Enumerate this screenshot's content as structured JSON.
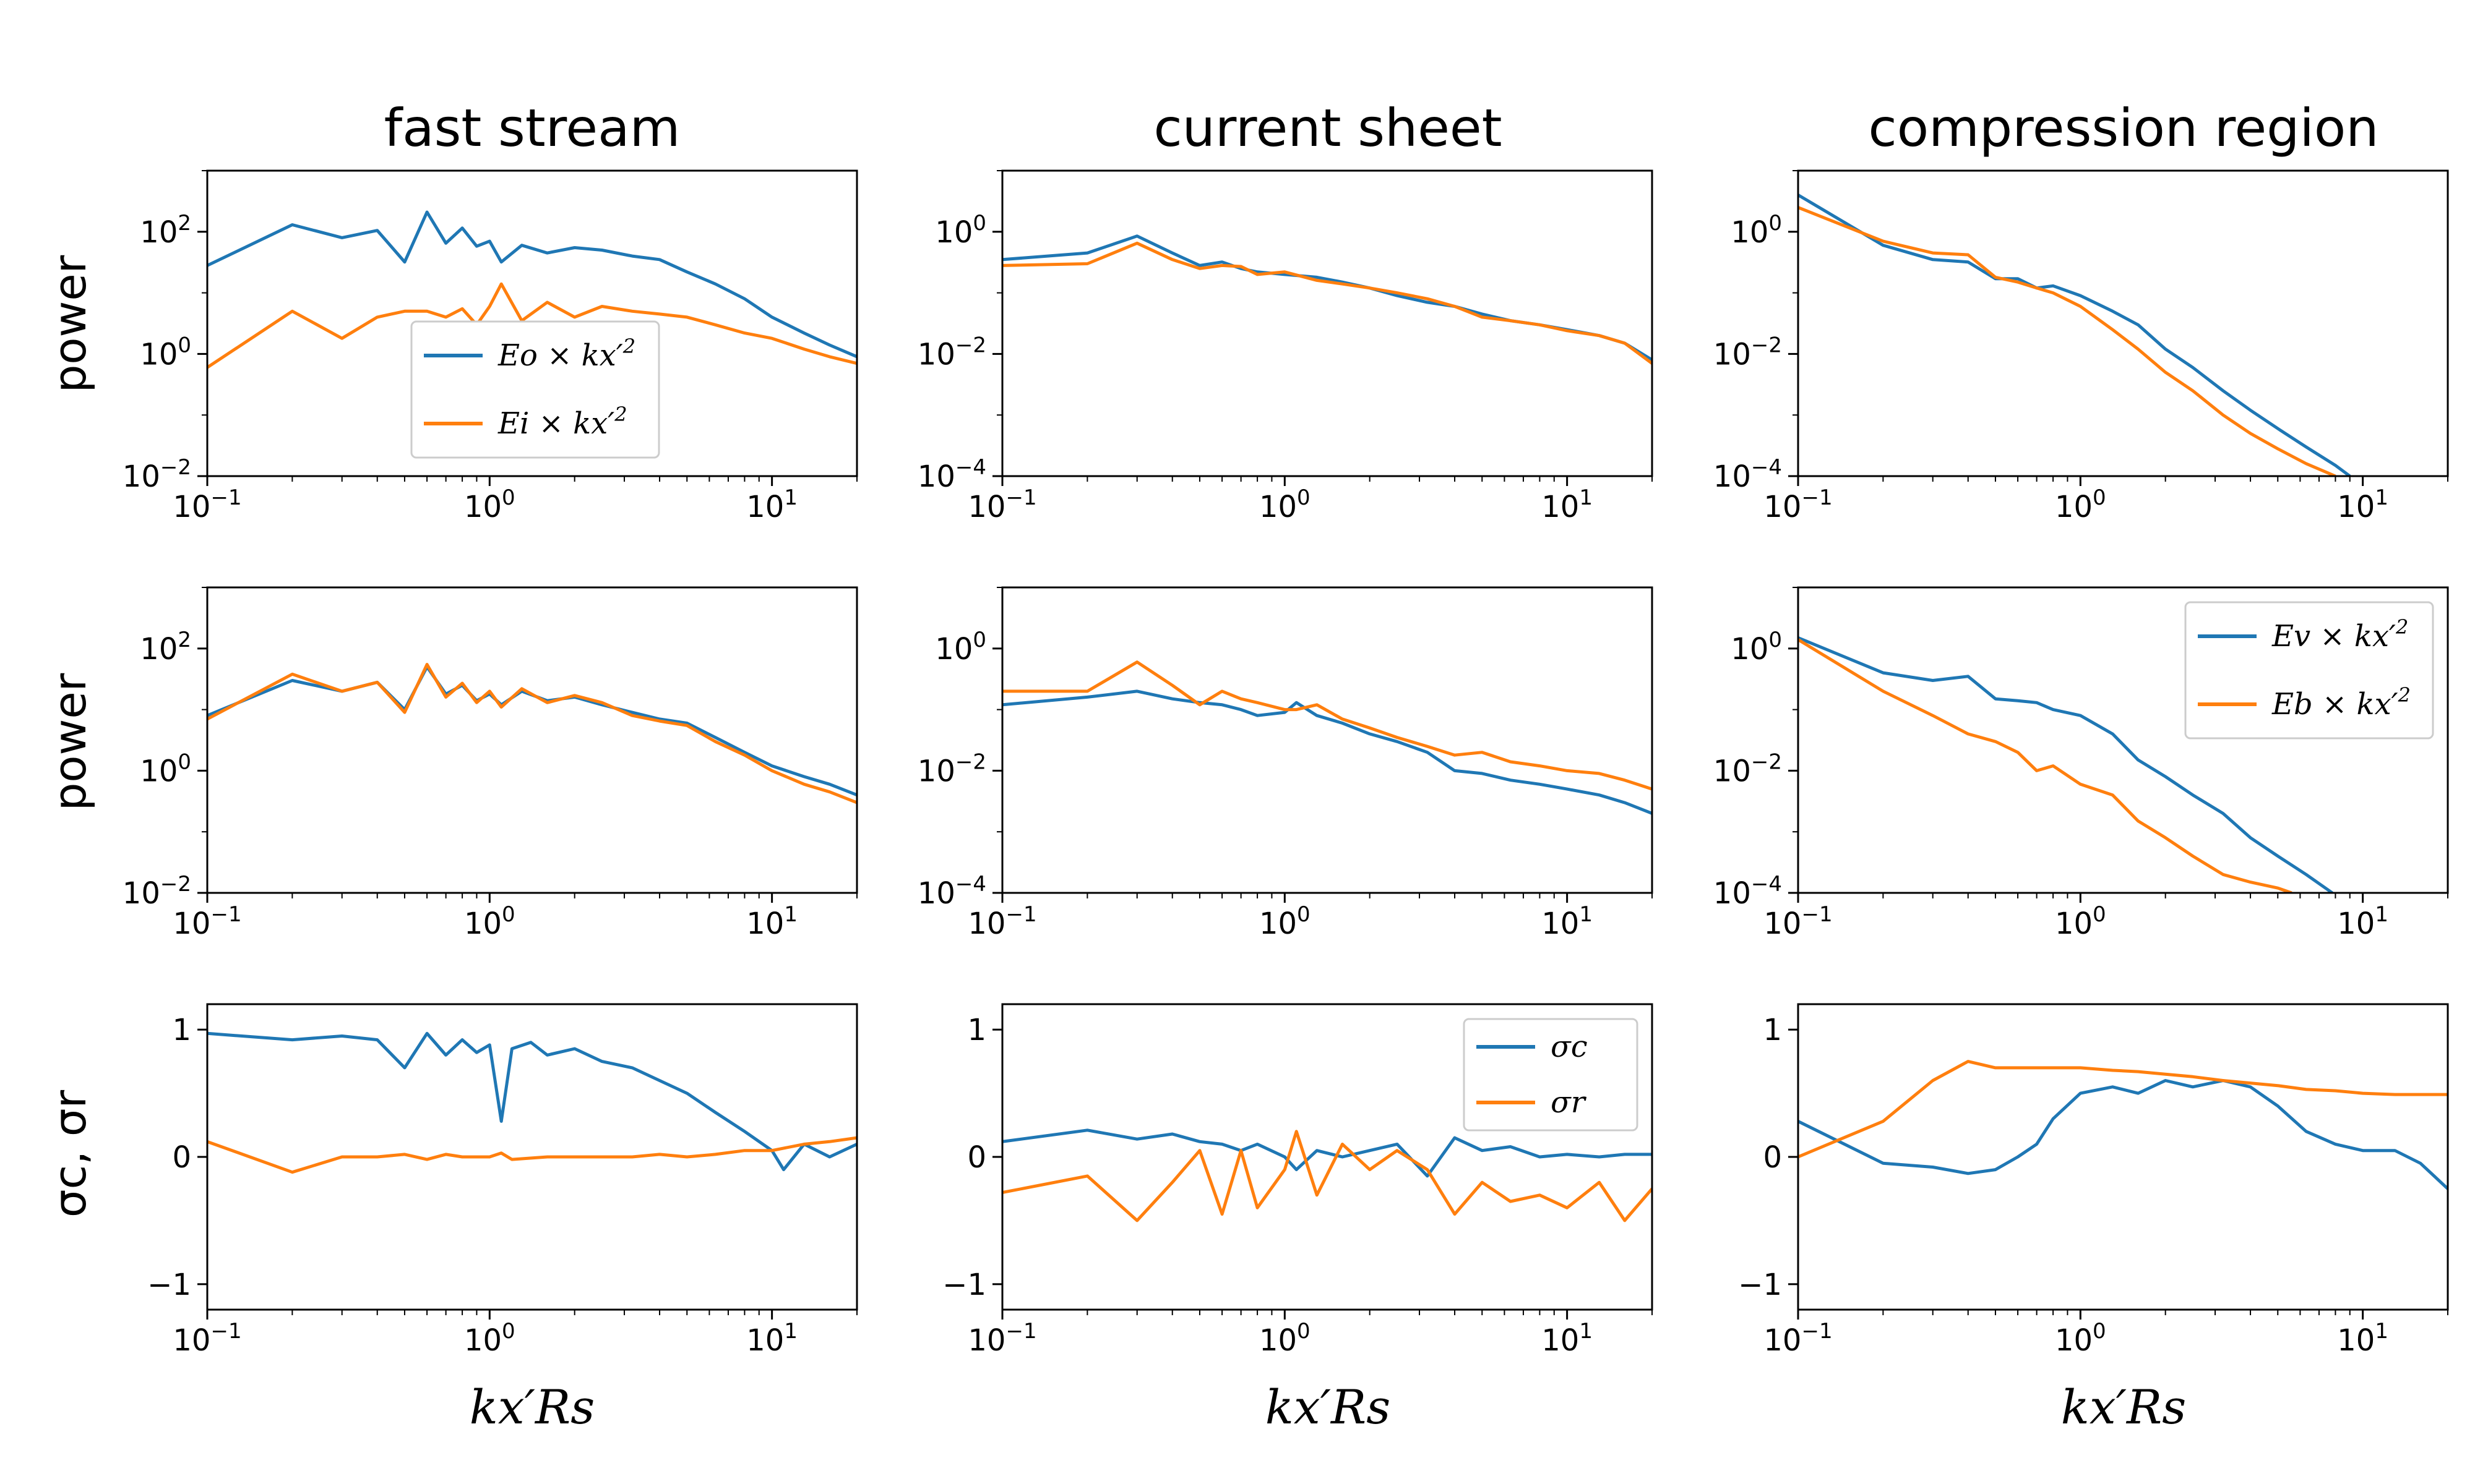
{
  "figure": {
    "column_titles": [
      "fast stream",
      "current sheet",
      "compression region"
    ],
    "ylabels": [
      "power",
      "power",
      "σc, σr"
    ],
    "xlabel": "kx′Rs",
    "xtick_labels": [
      "10−1",
      "100",
      "101"
    ]
  },
  "colors": {
    "blue": "#1f77b4",
    "orange": "#ff7f0e"
  },
  "chart_data": [
    {
      "id": "r0c0",
      "type": "line",
      "xscale": "log",
      "yscale": "log",
      "xlim": [
        0.1,
        20
      ],
      "ylim": [
        0.01,
        1000
      ],
      "ytick_labels": [
        "10−2",
        "100",
        "102"
      ],
      "legend": {
        "placement": "lower-center",
        "entries": [
          "Eo × kx′2",
          "Ei × kx′2"
        ]
      },
      "series": [
        {
          "name": "Eo × kx′2",
          "color": "blue",
          "x": [
            0.1,
            0.2,
            0.3,
            0.4,
            0.5,
            0.6,
            0.7,
            0.8,
            0.9,
            1.0,
            1.1,
            1.3,
            1.6,
            2.0,
            2.5,
            3.2,
            4.0,
            5.0,
            6.3,
            8.0,
            10,
            13,
            16,
            20
          ],
          "y": [
            28,
            130,
            80,
            105,
            32,
            210,
            65,
            115,
            58,
            70,
            32,
            60,
            45,
            55,
            50,
            40,
            35,
            22,
            14,
            8,
            4,
            2.2,
            1.4,
            0.9
          ]
        },
        {
          "name": "Ei × kx′2",
          "color": "orange",
          "x": [
            0.1,
            0.2,
            0.3,
            0.4,
            0.5,
            0.6,
            0.7,
            0.8,
            0.9,
            1.0,
            1.1,
            1.3,
            1.6,
            2.0,
            2.5,
            3.2,
            4.0,
            5.0,
            6.3,
            8.0,
            10,
            13,
            16,
            20
          ],
          "y": [
            0.6,
            5,
            1.8,
            4,
            5,
            5,
            4,
            5.5,
            3,
            6,
            14,
            3.5,
            7,
            4,
            6,
            5,
            4.5,
            4,
            3,
            2.2,
            1.8,
            1.2,
            0.9,
            0.7
          ]
        }
      ]
    },
    {
      "id": "r0c1",
      "type": "line",
      "xscale": "log",
      "yscale": "log",
      "xlim": [
        0.1,
        20
      ],
      "ylim": [
        0.0001,
        10
      ],
      "ytick_labels": [
        "10−4",
        "10−2",
        "100"
      ],
      "series": [
        {
          "name": "Eo × kx′2",
          "color": "blue",
          "x": [
            0.1,
            0.2,
            0.3,
            0.4,
            0.5,
            0.6,
            0.7,
            0.8,
            1.0,
            1.3,
            1.6,
            2.0,
            2.5,
            3.2,
            4.0,
            5.0,
            6.3,
            8.0,
            10,
            13,
            16,
            20
          ],
          "y": [
            0.35,
            0.45,
            0.85,
            0.45,
            0.28,
            0.32,
            0.25,
            0.22,
            0.2,
            0.18,
            0.15,
            0.12,
            0.09,
            0.07,
            0.06,
            0.045,
            0.035,
            0.03,
            0.025,
            0.02,
            0.015,
            0.008
          ]
        },
        {
          "name": "Ei × kx′2",
          "color": "orange",
          "x": [
            0.1,
            0.2,
            0.3,
            0.4,
            0.5,
            0.6,
            0.7,
            0.8,
            1.0,
            1.3,
            1.6,
            2.0,
            2.5,
            3.2,
            4.0,
            5.0,
            6.3,
            8.0,
            10,
            13,
            16,
            20
          ],
          "y": [
            0.28,
            0.3,
            0.65,
            0.35,
            0.25,
            0.28,
            0.27,
            0.2,
            0.22,
            0.16,
            0.14,
            0.12,
            0.1,
            0.08,
            0.06,
            0.04,
            0.035,
            0.03,
            0.024,
            0.02,
            0.015,
            0.007
          ]
        }
      ]
    },
    {
      "id": "r0c2",
      "type": "line",
      "xscale": "log",
      "yscale": "log",
      "xlim": [
        0.1,
        20
      ],
      "ylim": [
        0.0001,
        10
      ],
      "ytick_labels": [
        "10−4",
        "10−2",
        "100"
      ],
      "series": [
        {
          "name": "Eo × kx′2",
          "color": "blue",
          "x": [
            0.1,
            0.2,
            0.3,
            0.4,
            0.5,
            0.6,
            0.7,
            0.8,
            1.0,
            1.3,
            1.6,
            2.0,
            2.5,
            3.2,
            4.0,
            5.0,
            6.3,
            8.0,
            9.0
          ],
          "y": [
            4,
            0.6,
            0.35,
            0.32,
            0.17,
            0.17,
            0.12,
            0.13,
            0.09,
            0.05,
            0.03,
            0.012,
            0.006,
            0.0025,
            0.0012,
            0.0006,
            0.0003,
            0.00015,
            0.0001
          ]
        },
        {
          "name": "Ei × kx′2",
          "color": "orange",
          "x": [
            0.1,
            0.2,
            0.3,
            0.4,
            0.5,
            0.6,
            0.7,
            0.8,
            1.0,
            1.3,
            1.6,
            2.0,
            2.5,
            3.2,
            4.0,
            5.0,
            6.3,
            8.0
          ],
          "y": [
            2.5,
            0.7,
            0.45,
            0.42,
            0.18,
            0.15,
            0.12,
            0.1,
            0.06,
            0.025,
            0.012,
            0.005,
            0.0025,
            0.001,
            0.0005,
            0.00028,
            0.00016,
            0.0001
          ]
        }
      ]
    },
    {
      "id": "r1c0",
      "type": "line",
      "xscale": "log",
      "yscale": "log",
      "xlim": [
        0.1,
        20
      ],
      "ylim": [
        0.01,
        1000
      ],
      "ytick_labels": [
        "10−2",
        "100",
        "102"
      ],
      "series": [
        {
          "name": "Ev × kx′2",
          "color": "blue",
          "x": [
            0.1,
            0.2,
            0.3,
            0.4,
            0.5,
            0.6,
            0.7,
            0.8,
            0.9,
            1.0,
            1.1,
            1.3,
            1.6,
            2.0,
            2.5,
            3.2,
            4.0,
            5.0,
            6.3,
            8.0,
            10,
            13,
            16,
            20
          ],
          "y": [
            8,
            30,
            20,
            28,
            10,
            50,
            18,
            25,
            14,
            18,
            12,
            20,
            14,
            16,
            12,
            9,
            7,
            6,
            3.5,
            2,
            1.2,
            0.8,
            0.6,
            0.4
          ]
        },
        {
          "name": "Eb × kx′2",
          "color": "orange",
          "x": [
            0.1,
            0.2,
            0.3,
            0.4,
            0.5,
            0.6,
            0.7,
            0.8,
            0.9,
            1.0,
            1.1,
            1.3,
            1.6,
            2.0,
            2.5,
            3.2,
            4.0,
            5.0,
            6.3,
            8.0,
            10,
            13,
            16,
            20
          ],
          "y": [
            7,
            38,
            20,
            28,
            9,
            55,
            16,
            27,
            13,
            20,
            11,
            22,
            13,
            17,
            13,
            8,
            6.5,
            5.5,
            3,
            1.8,
            1,
            0.6,
            0.45,
            0.3
          ]
        }
      ]
    },
    {
      "id": "r1c1",
      "type": "line",
      "xscale": "log",
      "yscale": "log",
      "xlim": [
        0.1,
        20
      ],
      "ylim": [
        0.0001,
        10
      ],
      "ytick_labels": [
        "10−4",
        "10−2",
        "100"
      ],
      "series": [
        {
          "name": "Ev × kx′2",
          "color": "blue",
          "x": [
            0.1,
            0.2,
            0.3,
            0.4,
            0.5,
            0.6,
            0.7,
            0.8,
            1.0,
            1.1,
            1.3,
            1.6,
            2.0,
            2.5,
            3.2,
            4.0,
            5.0,
            6.3,
            8.0,
            10,
            13,
            16,
            20
          ],
          "y": [
            0.12,
            0.16,
            0.2,
            0.15,
            0.13,
            0.12,
            0.1,
            0.08,
            0.09,
            0.13,
            0.08,
            0.06,
            0.04,
            0.03,
            0.02,
            0.01,
            0.009,
            0.007,
            0.006,
            0.005,
            0.004,
            0.003,
            0.002
          ]
        },
        {
          "name": "Eb × kx′2",
          "color": "orange",
          "x": [
            0.1,
            0.2,
            0.3,
            0.4,
            0.5,
            0.6,
            0.7,
            0.8,
            1.0,
            1.1,
            1.3,
            1.6,
            2.0,
            2.5,
            3.2,
            4.0,
            5.0,
            6.3,
            8.0,
            10,
            13,
            16,
            20
          ],
          "y": [
            0.2,
            0.2,
            0.6,
            0.25,
            0.12,
            0.2,
            0.15,
            0.13,
            0.1,
            0.1,
            0.12,
            0.07,
            0.05,
            0.035,
            0.025,
            0.018,
            0.02,
            0.014,
            0.012,
            0.01,
            0.009,
            0.007,
            0.005
          ]
        }
      ]
    },
    {
      "id": "r1c2",
      "type": "line",
      "xscale": "log",
      "yscale": "log",
      "xlim": [
        0.1,
        20
      ],
      "ylim": [
        0.0001,
        10
      ],
      "ytick_labels": [
        "10−4",
        "10−2",
        "100"
      ],
      "legend": {
        "placement": "upper-right",
        "entries": [
          "Ev × kx′2",
          "Eb × kx′2"
        ]
      },
      "series": [
        {
          "name": "Ev × kx′2",
          "color": "blue",
          "x": [
            0.1,
            0.2,
            0.3,
            0.4,
            0.5,
            0.6,
            0.7,
            0.8,
            1.0,
            1.3,
            1.6,
            2.0,
            2.5,
            3.2,
            4.0,
            5.0,
            6.3,
            7.8
          ],
          "y": [
            1.5,
            0.4,
            0.3,
            0.35,
            0.15,
            0.14,
            0.13,
            0.1,
            0.08,
            0.04,
            0.015,
            0.008,
            0.004,
            0.002,
            0.0008,
            0.0004,
            0.0002,
            0.0001
          ]
        },
        {
          "name": "Eb × kx′2",
          "color": "orange",
          "x": [
            0.1,
            0.2,
            0.3,
            0.4,
            0.5,
            0.6,
            0.7,
            0.8,
            1.0,
            1.3,
            1.6,
            2.0,
            2.5,
            3.2,
            4.0,
            5.0,
            5.6
          ],
          "y": [
            1.4,
            0.2,
            0.08,
            0.04,
            0.03,
            0.02,
            0.01,
            0.012,
            0.006,
            0.004,
            0.0015,
            0.0008,
            0.0004,
            0.0002,
            0.00015,
            0.00012,
            0.0001
          ]
        }
      ]
    },
    {
      "id": "r2c0",
      "type": "line",
      "xscale": "log",
      "yscale": "linear",
      "xlim": [
        0.1,
        20
      ],
      "ylim": [
        -1.2,
        1.2
      ],
      "ytick_values": [
        -1,
        0,
        1
      ],
      "ytick_labels": [
        "−1",
        "0",
        "1"
      ],
      "series": [
        {
          "name": "σc",
          "color": "blue",
          "x": [
            0.1,
            0.2,
            0.3,
            0.4,
            0.5,
            0.6,
            0.7,
            0.8,
            0.9,
            1.0,
            1.1,
            1.2,
            1.4,
            1.6,
            2.0,
            2.5,
            3.2,
            4.0,
            5.0,
            6.3,
            8.0,
            10,
            11,
            13,
            16,
            20
          ],
          "y": [
            0.97,
            0.92,
            0.95,
            0.92,
            0.7,
            0.97,
            0.8,
            0.92,
            0.82,
            0.88,
            0.28,
            0.85,
            0.9,
            0.8,
            0.85,
            0.75,
            0.7,
            0.6,
            0.5,
            0.35,
            0.2,
            0.05,
            -0.1,
            0.1,
            0,
            0.1
          ]
        },
        {
          "name": "σr",
          "color": "orange",
          "x": [
            0.1,
            0.2,
            0.3,
            0.4,
            0.5,
            0.6,
            0.7,
            0.8,
            0.9,
            1.0,
            1.1,
            1.2,
            1.6,
            2.0,
            2.5,
            3.2,
            4.0,
            5.0,
            6.3,
            8.0,
            10,
            13,
            16,
            20
          ],
          "y": [
            0.12,
            -0.12,
            0,
            0,
            0.02,
            -0.02,
            0.02,
            0,
            0,
            0,
            0.03,
            -0.02,
            0,
            0,
            0,
            0,
            0.02,
            0,
            0.02,
            0.05,
            0.05,
            0.1,
            0.12,
            0.15
          ]
        }
      ]
    },
    {
      "id": "r2c1",
      "type": "line",
      "xscale": "log",
      "yscale": "linear",
      "xlim": [
        0.1,
        20
      ],
      "ylim": [
        -1.2,
        1.2
      ],
      "ytick_values": [
        -1,
        0,
        1
      ],
      "ytick_labels": [
        "−1",
        "0",
        "1"
      ],
      "legend": {
        "placement": "upper-right",
        "entries": [
          "σc",
          "σr"
        ]
      },
      "series": [
        {
          "name": "σc",
          "color": "blue",
          "x": [
            0.1,
            0.2,
            0.3,
            0.4,
            0.5,
            0.6,
            0.7,
            0.8,
            1.0,
            1.1,
            1.3,
            1.6,
            2.0,
            2.5,
            3.2,
            4.0,
            5.0,
            6.3,
            8.0,
            10,
            13,
            16,
            20
          ],
          "y": [
            0.12,
            0.21,
            0.14,
            0.18,
            0.12,
            0.1,
            0.05,
            0.1,
            0.0,
            -0.1,
            0.05,
            0.0,
            0.05,
            0.1,
            -0.15,
            0.15,
            0.05,
            0.08,
            0.0,
            0.02,
            0.0,
            0.02,
            0.02
          ]
        },
        {
          "name": "σr",
          "color": "orange",
          "x": [
            0.1,
            0.2,
            0.3,
            0.4,
            0.5,
            0.6,
            0.7,
            0.8,
            1.0,
            1.1,
            1.3,
            1.6,
            2.0,
            2.5,
            3.2,
            4.0,
            5.0,
            6.3,
            8.0,
            10,
            13,
            16,
            20
          ],
          "y": [
            -0.28,
            -0.15,
            -0.5,
            -0.2,
            0.05,
            -0.45,
            0.05,
            -0.4,
            -0.1,
            0.2,
            -0.3,
            0.1,
            -0.1,
            0.05,
            -0.1,
            -0.45,
            -0.2,
            -0.35,
            -0.3,
            -0.4,
            -0.2,
            -0.5,
            -0.25
          ]
        }
      ]
    },
    {
      "id": "r2c2",
      "type": "line",
      "xscale": "log",
      "yscale": "linear",
      "xlim": [
        0.1,
        20
      ],
      "ylim": [
        -1.2,
        1.2
      ],
      "ytick_values": [
        -1,
        0,
        1
      ],
      "ytick_labels": [
        "−1",
        "0",
        "1"
      ],
      "series": [
        {
          "name": "σc",
          "color": "blue",
          "x": [
            0.1,
            0.2,
            0.3,
            0.4,
            0.5,
            0.6,
            0.7,
            0.8,
            1.0,
            1.3,
            1.6,
            2.0,
            2.5,
            3.2,
            4.0,
            5.0,
            6.3,
            8.0,
            10,
            13,
            16,
            20
          ],
          "y": [
            0.28,
            -0.05,
            -0.08,
            -0.13,
            -0.1,
            0.0,
            0.1,
            0.3,
            0.5,
            0.55,
            0.5,
            0.6,
            0.55,
            0.6,
            0.55,
            0.4,
            0.2,
            0.1,
            0.05,
            0.05,
            -0.05,
            -0.25
          ]
        },
        {
          "name": "σr",
          "color": "orange",
          "x": [
            0.1,
            0.2,
            0.3,
            0.4,
            0.5,
            0.6,
            0.8,
            1.0,
            1.3,
            1.6,
            2.0,
            2.5,
            3.2,
            4.0,
            5.0,
            6.3,
            8.0,
            10,
            13,
            16,
            20
          ],
          "y": [
            0.0,
            0.28,
            0.6,
            0.75,
            0.7,
            0.7,
            0.7,
            0.7,
            0.68,
            0.67,
            0.65,
            0.63,
            0.6,
            0.58,
            0.56,
            0.53,
            0.52,
            0.5,
            0.49,
            0.49,
            0.49
          ]
        }
      ]
    }
  ]
}
